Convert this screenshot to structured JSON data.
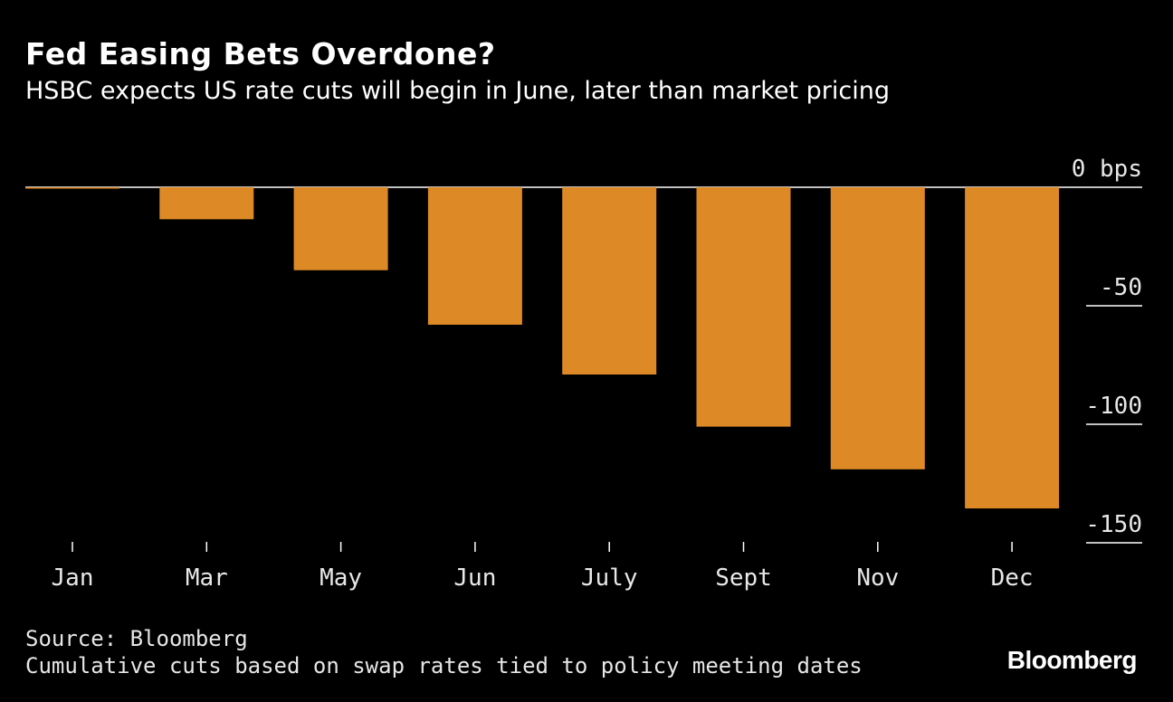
{
  "title": "Fed Easing Bets Overdone?",
  "subtitle": "HSBC expects US rate cuts will begin in June, later than market pricing",
  "source": "Source: Bloomberg",
  "note": "Cumulative cuts based on swap rates tied to policy meeting dates",
  "brand": "Bloomberg",
  "colors": {
    "background": "#000000",
    "bar": "#DD8A26",
    "text": "#FFFFFF"
  },
  "chart_data": {
    "type": "bar",
    "title": "Fed Easing Bets Overdone?",
    "categories": [
      "Jan",
      "Mar",
      "May",
      "Jun",
      "July",
      "Sept",
      "Nov",
      "Dec"
    ],
    "values": [
      -0.5,
      -13.5,
      -35,
      -58,
      -79,
      -101,
      -119,
      -135.5
    ],
    "unit": "bps",
    "yticks": [
      0,
      -50,
      -100,
      -150
    ],
    "ytick_labels": [
      "0 bps",
      "-50",
      "-100",
      "-150"
    ],
    "ylim": [
      -150,
      0
    ],
    "axis_position": "right"
  }
}
